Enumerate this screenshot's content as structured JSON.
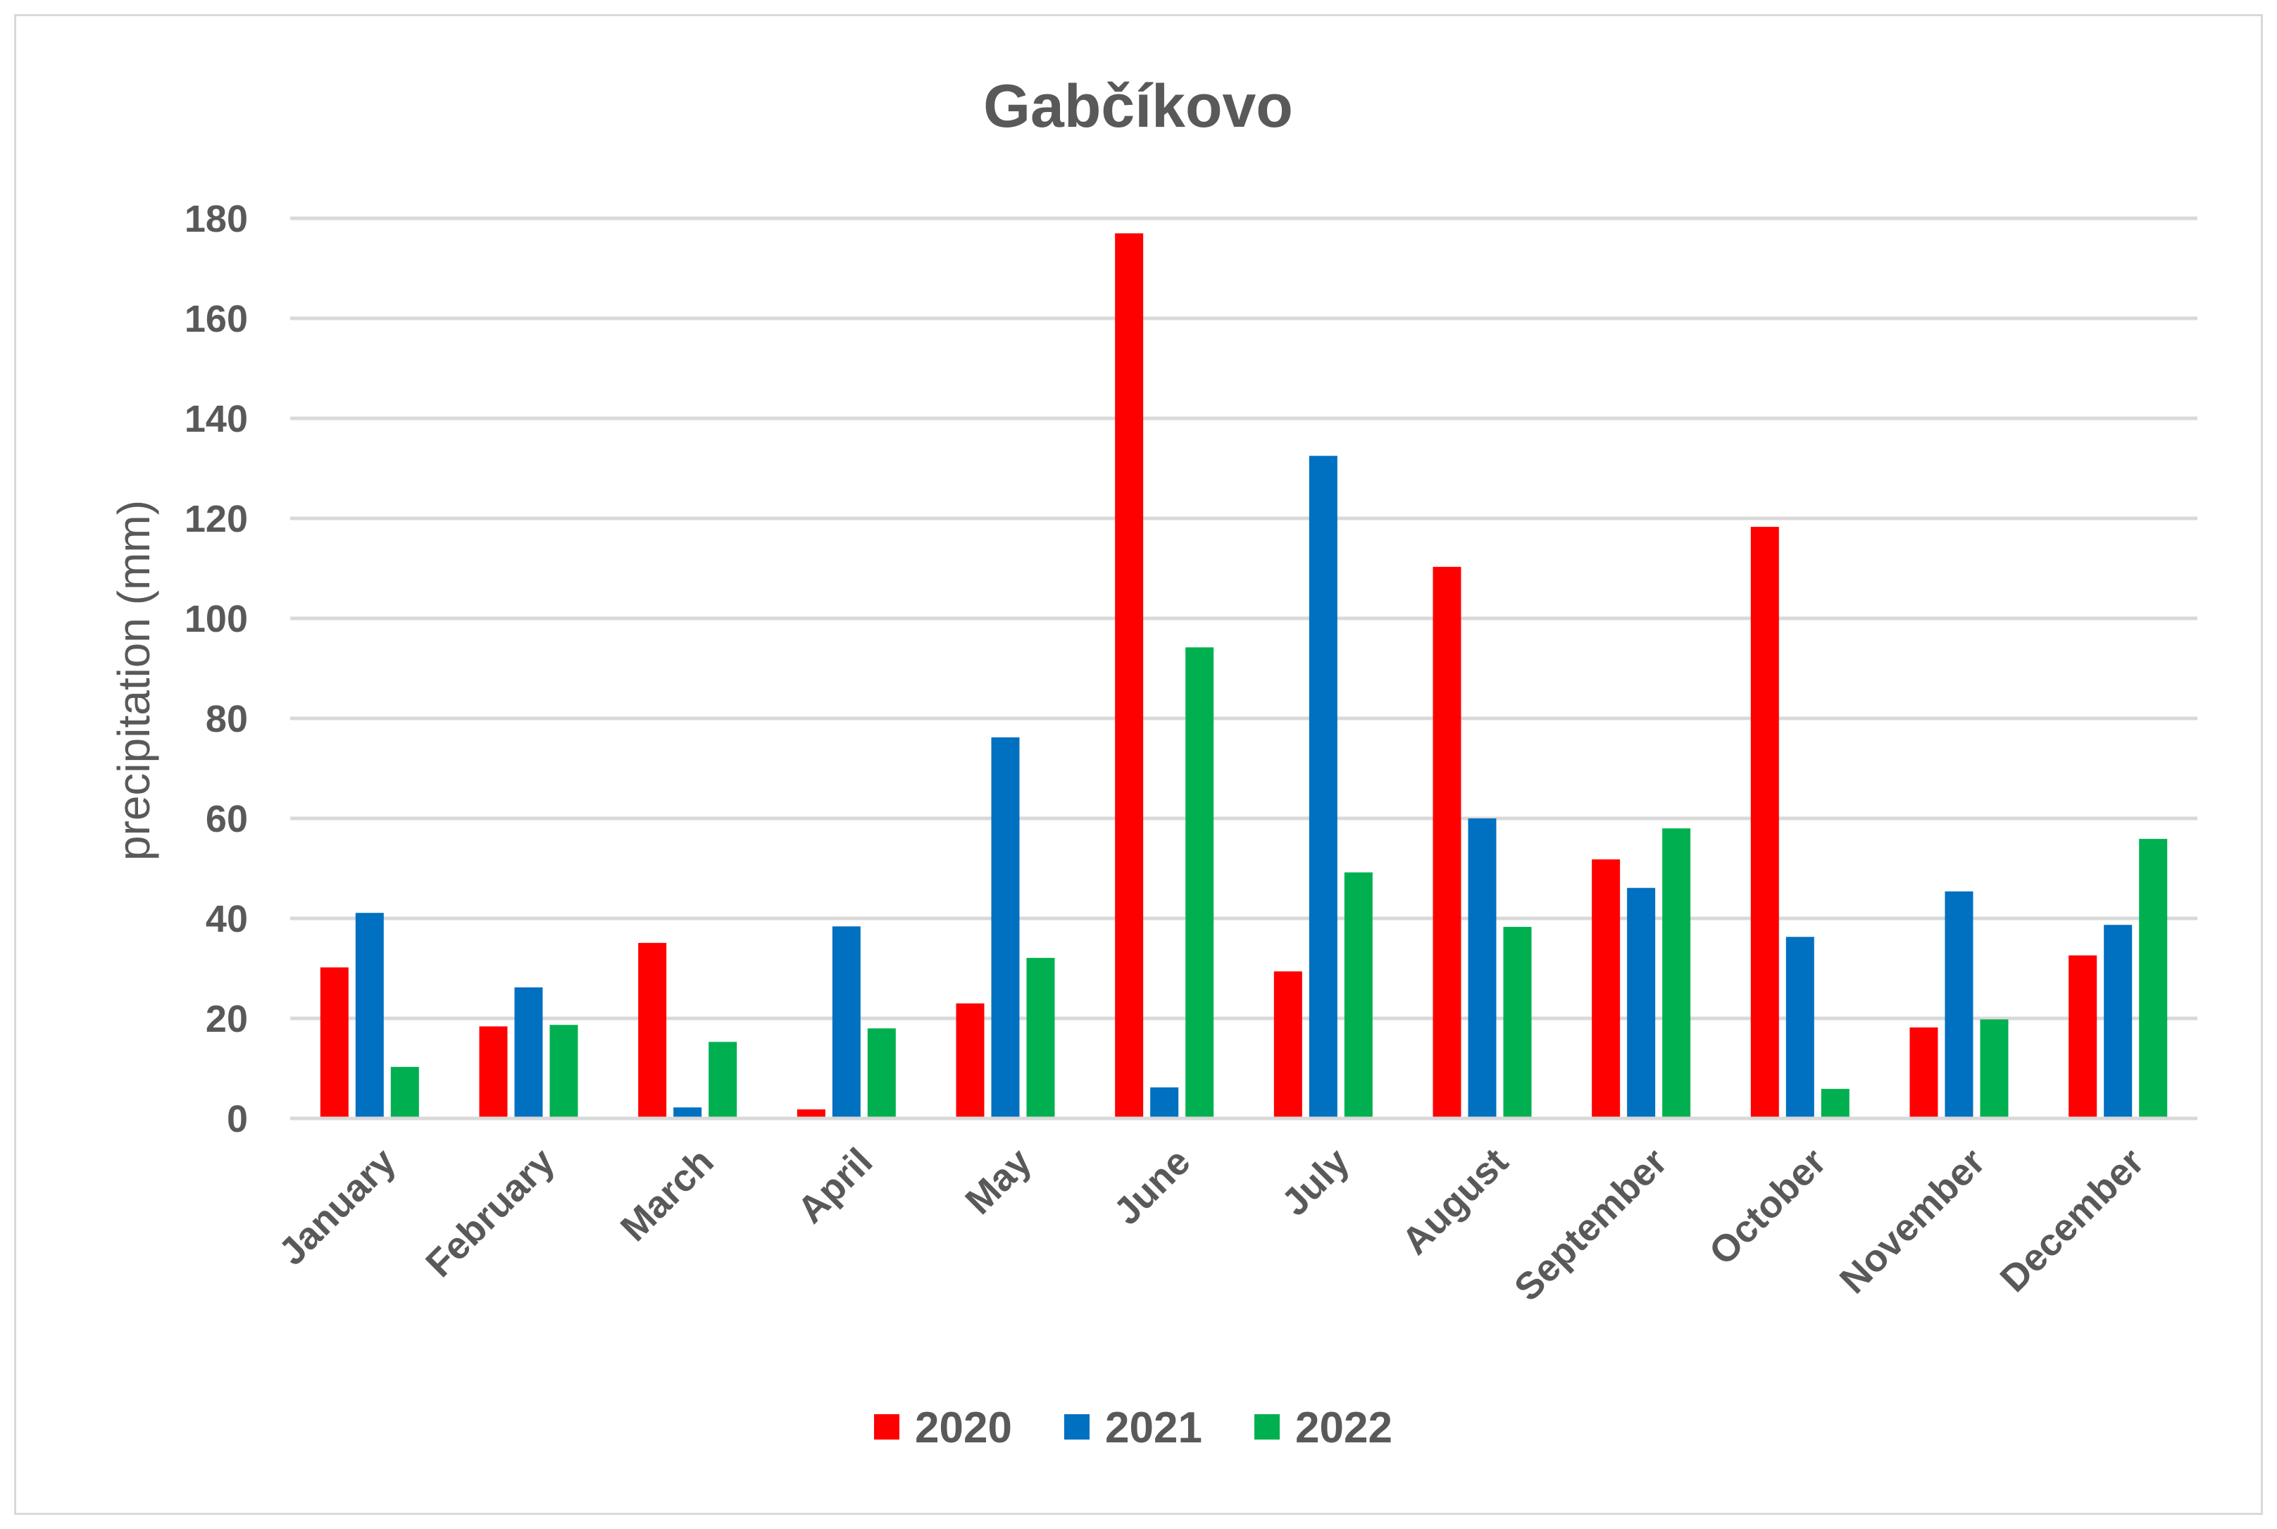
{
  "chart_data": {
    "type": "bar",
    "title": "Gabčíkovo",
    "xlabel": "",
    "ylabel": "precipitation (mm)",
    "ylim": [
      0,
      180
    ],
    "yticks": [
      "0",
      "20",
      "40",
      "60",
      "80",
      "100",
      "120",
      "140",
      "160",
      "180"
    ],
    "grid": true,
    "legend_position": "bottom",
    "categories": [
      "January",
      "February",
      "March",
      "April",
      "May",
      "June",
      "July",
      "August",
      "September",
      "October",
      "November",
      "December"
    ],
    "series": [
      {
        "name": "2020",
        "color": "#ff0000",
        "values": [
          30.2,
          18.4,
          35.1,
          1.8,
          23.0,
          177.0,
          29.4,
          110.3,
          51.8,
          118.3,
          18.2,
          32.6
        ]
      },
      {
        "name": "2021",
        "color": "#0070c0",
        "values": [
          41.1,
          26.2,
          2.2,
          38.4,
          76.2,
          6.2,
          132.5,
          60.0,
          46.1,
          36.3,
          45.4,
          38.7
        ]
      },
      {
        "name": "2022",
        "color": "#00b050",
        "values": [
          10.3,
          18.7,
          15.3,
          18.0,
          32.1,
          94.2,
          49.2,
          38.3,
          58.0,
          5.9,
          19.8,
          55.9
        ]
      }
    ]
  }
}
